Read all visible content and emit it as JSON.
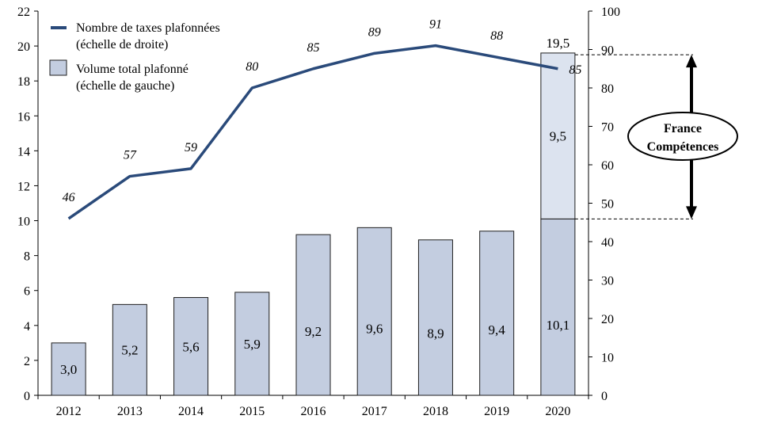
{
  "chart_data": {
    "type": "bar",
    "categories": [
      "2012",
      "2013",
      "2014",
      "2015",
      "2016",
      "2017",
      "2018",
      "2019",
      "2020"
    ],
    "series": [
      {
        "name": "Volume total plafonné (échelle de gauche)",
        "kind": "bar",
        "axis": "left",
        "values": [
          3.0,
          5.2,
          5.6,
          5.9,
          9.2,
          9.6,
          8.9,
          9.4,
          10.1
        ],
        "labels": [
          "3,0",
          "5,2",
          "5,6",
          "5,9",
          "9,2",
          "9,6",
          "8,9",
          "9,4",
          "10,1"
        ]
      },
      {
        "kind": "bar-stacked-extra",
        "axis": "left",
        "values": [
          null,
          null,
          null,
          null,
          null,
          null,
          null,
          null,
          9.5
        ],
        "labels": [
          "",
          "",
          "",
          "",
          "",
          "",
          "",
          "",
          "9,5"
        ],
        "total_label": "19,5",
        "total": 19.5
      },
      {
        "name": "Nombre de taxes plafonnées (échelle de droite)",
        "kind": "line",
        "axis": "right",
        "values": [
          46,
          57,
          59,
          80,
          85,
          89,
          91,
          88,
          85
        ],
        "labels": [
          "46",
          "57",
          "59",
          "80",
          "85",
          "89",
          "91",
          "88",
          "85"
        ]
      }
    ],
    "y_left": {
      "min": 0,
      "max": 22,
      "ticks": [
        0,
        2,
        4,
        6,
        8,
        10,
        12,
        14,
        16,
        18,
        20,
        22
      ]
    },
    "y_right": {
      "min": 0,
      "max": 100,
      "ticks": [
        0,
        10,
        20,
        30,
        40,
        50,
        60,
        70,
        80,
        90,
        100
      ]
    },
    "legend": {
      "position": "top-left",
      "items": [
        {
          "line1": "Nombre de taxes plafonnées",
          "line2": "(échelle de droite)",
          "marker": "line"
        },
        {
          "line1": "Volume total plafonné",
          "line2": "(échelle de gauche)",
          "marker": "box"
        }
      ]
    },
    "annotation": {
      "line1": "France",
      "line2": "Compétences",
      "from": 10.1,
      "to": 19.5
    },
    "colors": {
      "bar": "#c3cde0",
      "bar_extra": "#dce3ef",
      "bar_stroke": "#1f1f1f",
      "line": "#2a4a7a",
      "axis": "#000000"
    },
    "grid": false
  }
}
